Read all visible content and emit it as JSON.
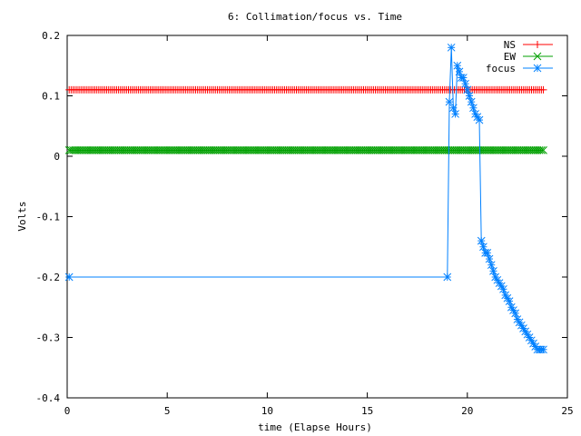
{
  "chart_data": {
    "type": "line",
    "title": "6: Collimation/focus vs. Time",
    "xlabel": "time (Elapse Hours)",
    "ylabel": "Volts",
    "xlim": [
      0,
      25
    ],
    "ylim": [
      -0.4,
      0.2
    ],
    "xticks": [
      0,
      5,
      10,
      15,
      20,
      25
    ],
    "xtick_labels": [
      "0",
      "5",
      "10",
      "15",
      "20",
      "25"
    ],
    "yticks": [
      -0.4,
      -0.3,
      -0.2,
      -0.1,
      0,
      0.1,
      0.2
    ],
    "ytick_labels": [
      "-0.4",
      "-0.3",
      "-0.2",
      "-0.1",
      "0",
      "0.1",
      "0.2"
    ],
    "grid": false,
    "legend_position": "top-right",
    "series": [
      {
        "name": "NS",
        "color": "#ff0000",
        "marker": "plus",
        "x": [
          0.1,
          23.8
        ],
        "y": [
          0.11,
          0.11
        ],
        "constant": true
      },
      {
        "name": "EW",
        "color": "#00a000",
        "marker": "cross",
        "x": [
          0.1,
          23.8
        ],
        "y": [
          0.01,
          0.01
        ],
        "constant": true
      },
      {
        "name": "focus",
        "color": "#0080ff",
        "marker": "star",
        "x": [
          0.1,
          19.0,
          19.1,
          19.2,
          19.3,
          19.4,
          19.5,
          19.6,
          19.7,
          19.8,
          19.9,
          20.0,
          20.1,
          20.2,
          20.3,
          20.4,
          20.5,
          20.6,
          20.7,
          20.8,
          20.9,
          21.0,
          21.1,
          21.2,
          21.3,
          21.4,
          21.5,
          21.6,
          21.7,
          21.8,
          21.9,
          22.0,
          22.1,
          22.2,
          22.3,
          22.4,
          22.5,
          22.6,
          22.7,
          22.8,
          22.9,
          23.0,
          23.1,
          23.2,
          23.3,
          23.4,
          23.5,
          23.6,
          23.7,
          23.8
        ],
        "y": [
          -0.2,
          -0.2,
          0.09,
          0.18,
          0.08,
          0.07,
          0.15,
          0.14,
          0.13,
          0.13,
          0.12,
          0.11,
          0.1,
          0.09,
          0.08,
          0.07,
          0.065,
          0.06,
          -0.14,
          -0.15,
          -0.16,
          -0.16,
          -0.17,
          -0.18,
          -0.19,
          -0.2,
          -0.205,
          -0.21,
          -0.215,
          -0.22,
          -0.23,
          -0.235,
          -0.24,
          -0.25,
          -0.255,
          -0.26,
          -0.27,
          -0.275,
          -0.28,
          -0.285,
          -0.29,
          -0.295,
          -0.3,
          -0.305,
          -0.31,
          -0.315,
          -0.32,
          -0.32,
          -0.32,
          -0.32
        ]
      }
    ]
  }
}
